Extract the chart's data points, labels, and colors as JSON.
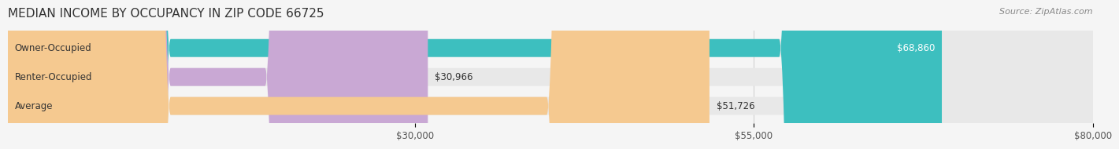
{
  "title": "MEDIAN INCOME BY OCCUPANCY IN ZIP CODE 66725",
  "source": "Source: ZipAtlas.com",
  "categories": [
    "Owner-Occupied",
    "Renter-Occupied",
    "Average"
  ],
  "values": [
    68860,
    30966,
    51726
  ],
  "bar_colors": [
    "#3dbfbf",
    "#c9a8d4",
    "#f5c990"
  ],
  "bar_labels": [
    "$68,860",
    "$30,966",
    "$51,726"
  ],
  "xlim": [
    0,
    80000
  ],
  "xticks": [
    30000,
    55000,
    80000
  ],
  "xtick_labels": [
    "$30,000",
    "$55,000",
    "$80,000"
  ],
  "bg_color": "#f5f5f5",
  "bar_bg_color": "#e8e8e8",
  "title_fontsize": 11,
  "label_fontsize": 8.5,
  "source_fontsize": 8
}
